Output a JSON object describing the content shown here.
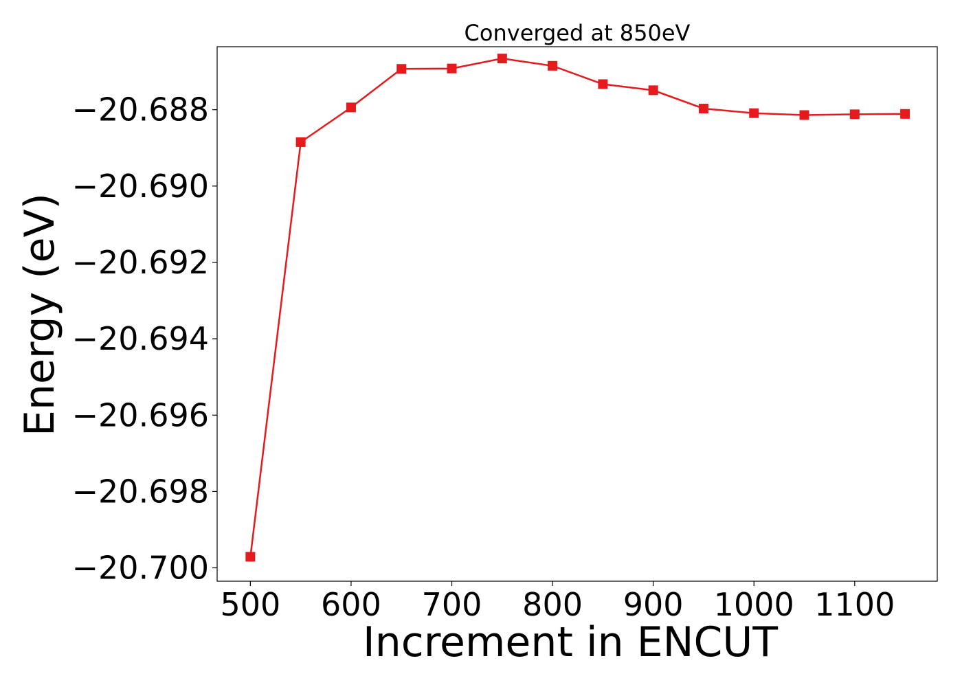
{
  "chart_data": {
    "type": "line",
    "title": "Converged at 850eV",
    "xlabel": "Increment in ENCUT",
    "ylabel": "Energy (eV)",
    "xlim": [
      467,
      1182
    ],
    "ylim": [
      -20.70035,
      -20.68635
    ],
    "xticks": [
      500,
      600,
      700,
      800,
      900,
      1000,
      1100
    ],
    "yticks": [
      -20.7,
      -20.698,
      -20.696,
      -20.694,
      -20.692,
      -20.69,
      -20.688
    ],
    "ytick_labels": [
      "−20.700",
      "−20.698",
      "−20.696",
      "−20.694",
      "−20.692",
      "−20.690",
      "−20.688"
    ],
    "grid": false,
    "series": [
      {
        "marker": "square",
        "color": "#e41a1c",
        "x": [
          500,
          550,
          600,
          650,
          700,
          750,
          800,
          850,
          900,
          950,
          1000,
          1050,
          1100,
          1150
        ],
        "y": [
          -20.69971,
          -20.68885,
          -20.68794,
          -20.68693,
          -20.68692,
          -20.68666,
          -20.68685,
          -20.68733,
          -20.68749,
          -20.68797,
          -20.68809,
          -20.68814,
          -20.68812,
          -20.68811
        ]
      }
    ]
  }
}
